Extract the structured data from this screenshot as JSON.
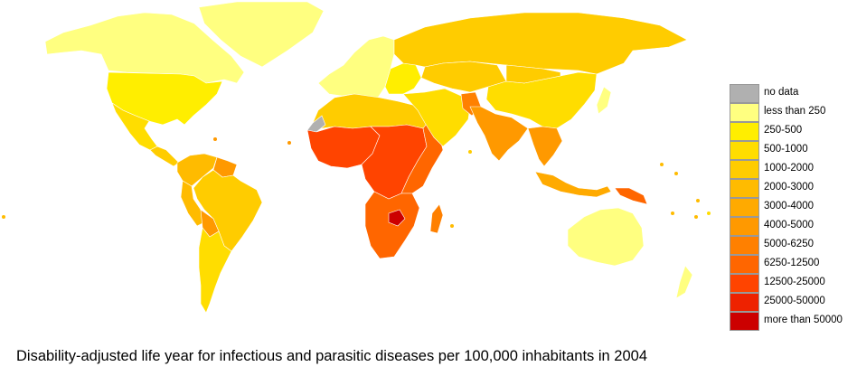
{
  "title": "Disability-adjusted life year for infectious and parasitic diseases per 100,000 inhabitants in 2004",
  "legend": {
    "items": [
      {
        "label": "no data",
        "color": "#b0b0b0"
      },
      {
        "label": "less than 250",
        "color": "#ffff80"
      },
      {
        "label": "250-500",
        "color": "#ffee00"
      },
      {
        "label": "500-1000",
        "color": "#ffdd00"
      },
      {
        "label": "1000-2000",
        "color": "#ffcc00"
      },
      {
        "label": "2000-3000",
        "color": "#ffbb00"
      },
      {
        "label": "3000-4000",
        "color": "#ffaa00"
      },
      {
        "label": "4000-5000",
        "color": "#ff9900"
      },
      {
        "label": "5000-6250",
        "color": "#ff8000"
      },
      {
        "label": "6250-12500",
        "color": "#ff6600"
      },
      {
        "label": "12500-25000",
        "color": "#ff4400"
      },
      {
        "label": "25000-50000",
        "color": "#ee2200"
      },
      {
        "label": "more than 50000",
        "color": "#cc0000"
      }
    ]
  },
  "map": {
    "regions": [
      {
        "id": "greenland",
        "name": "Greenland",
        "color": "#ffff80"
      },
      {
        "id": "canada",
        "name": "Canada",
        "color": "#ffff80"
      },
      {
        "id": "usa",
        "name": "United States",
        "color": "#ffee00"
      },
      {
        "id": "mexico",
        "name": "Mexico",
        "color": "#ffdd00"
      },
      {
        "id": "central-america",
        "name": "Central America",
        "color": "#ffcc00"
      },
      {
        "id": "colombia-venezuela",
        "name": "Colombia / Venezuela",
        "color": "#ffbb00"
      },
      {
        "id": "guianas",
        "name": "Guianas",
        "color": "#ff9900"
      },
      {
        "id": "brazil",
        "name": "Brazil",
        "color": "#ffcc00"
      },
      {
        "id": "peru",
        "name": "Peru",
        "color": "#ffbb00"
      },
      {
        "id": "bolivia",
        "name": "Bolivia",
        "color": "#ff9900"
      },
      {
        "id": "southern-cone",
        "name": "Argentina / Chile",
        "color": "#ffdd00"
      },
      {
        "id": "europe",
        "name": "Europe",
        "color": "#ffff80"
      },
      {
        "id": "eastern-europe",
        "name": "Eastern Europe",
        "color": "#ffee00"
      },
      {
        "id": "russia",
        "name": "Russia",
        "color": "#ffcc00"
      },
      {
        "id": "north-africa",
        "name": "North Africa",
        "color": "#ffcc00"
      },
      {
        "id": "western-sahara",
        "name": "Western Sahara",
        "color": "#b0b0b0"
      },
      {
        "id": "west-africa",
        "name": "West Africa",
        "color": "#ff4400"
      },
      {
        "id": "central-africa",
        "name": "Central Africa",
        "color": "#ff4400"
      },
      {
        "id": "east-africa",
        "name": "East Africa",
        "color": "#ff6600"
      },
      {
        "id": "southern-africa",
        "name": "Southern Africa",
        "color": "#ff6600"
      },
      {
        "id": "zimbabwe",
        "name": "Zimbabwe",
        "color": "#cc0000"
      },
      {
        "id": "madagascar",
        "name": "Madagascar",
        "color": "#ff8000"
      },
      {
        "id": "middle-east",
        "name": "Middle East",
        "color": "#ffdd00"
      },
      {
        "id": "central-asia",
        "name": "Central Asia",
        "color": "#ffcc00"
      },
      {
        "id": "afghanistan",
        "name": "Afghanistan",
        "color": "#ff8000"
      },
      {
        "id": "south-asia",
        "name": "South Asia",
        "color": "#ff9900"
      },
      {
        "id": "china",
        "name": "China",
        "color": "#ffdd00"
      },
      {
        "id": "mongolia",
        "name": "Mongolia",
        "color": "#ffcc00"
      },
      {
        "id": "mainland-southeast-asia",
        "name": "Mainland Southeast Asia",
        "color": "#ff9900"
      },
      {
        "id": "japan",
        "name": "Japan",
        "color": "#ffff80"
      },
      {
        "id": "maritime-southeast-asia",
        "name": "Maritime Southeast Asia",
        "color": "#ffaa00"
      },
      {
        "id": "papua-new-guinea",
        "name": "Papua New Guinea",
        "color": "#ff6600"
      },
      {
        "id": "australia",
        "name": "Australia",
        "color": "#ffff80"
      },
      {
        "id": "new-zealand",
        "name": "New Zealand",
        "color": "#ffff80"
      }
    ]
  }
}
